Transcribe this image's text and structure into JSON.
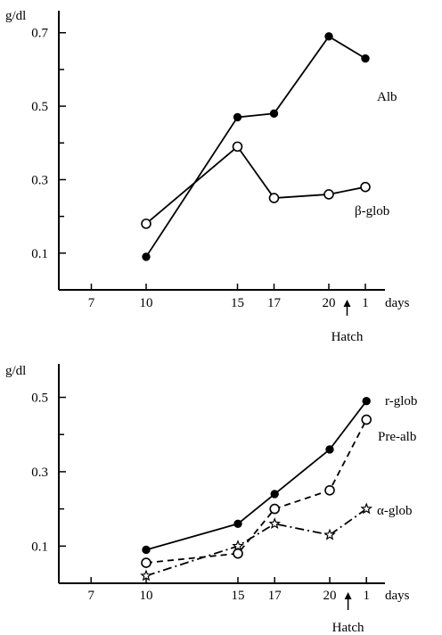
{
  "chart_data": [
    {
      "type": "line",
      "title": "",
      "ylabel": "g/dl",
      "xlabel": "days",
      "x_ticks": [
        "7",
        "10",
        "15",
        "17",
        "20",
        "1"
      ],
      "x_positions": [
        7,
        10,
        15,
        17,
        20,
        22
      ],
      "y_ticks": [
        "0.1",
        "0.3",
        "0.5",
        "0.7"
      ],
      "ylim": [
        0.0,
        0.76
      ],
      "xlim": [
        4,
        23.5
      ],
      "annotation": {
        "text": "Hatch",
        "x": 21
      },
      "series": [
        {
          "name": "Alb",
          "marker": "filled-circle",
          "style": "solid",
          "x": [
            10,
            15,
            17,
            20,
            22
          ],
          "values": [
            0.09,
            0.47,
            0.48,
            0.69,
            0.63
          ]
        },
        {
          "name": "β-glob",
          "marker": "open-circle",
          "style": "solid",
          "x": [
            10,
            15,
            17,
            20,
            22
          ],
          "values": [
            0.18,
            0.39,
            0.25,
            0.26,
            0.28
          ]
        }
      ]
    },
    {
      "type": "line",
      "title": "",
      "ylabel": "g/dl",
      "xlabel": "days",
      "x_ticks": [
        "7",
        "10",
        "15",
        "17",
        "20",
        "1"
      ],
      "x_positions": [
        7,
        10,
        15,
        17,
        20,
        22
      ],
      "y_ticks": [
        "0.1",
        "0.3",
        "0.5"
      ],
      "ylim": [
        0.0,
        0.59
      ],
      "xlim": [
        4,
        23.5
      ],
      "annotation": {
        "text": "Hatch",
        "x": 21
      },
      "series": [
        {
          "name": "r-glob",
          "marker": "filled-circle",
          "style": "solid",
          "x": [
            10,
            15,
            17,
            20,
            22
          ],
          "values": [
            0.09,
            0.16,
            0.24,
            0.36,
            0.49
          ]
        },
        {
          "name": "Pre-alb",
          "marker": "open-circle",
          "style": "dashed",
          "x": [
            10,
            15,
            17,
            20,
            22
          ],
          "values": [
            0.055,
            0.08,
            0.2,
            0.25,
            0.44
          ]
        },
        {
          "name": "α-glob",
          "marker": "star",
          "style": "dash-dot",
          "x": [
            10,
            15,
            17,
            20,
            22
          ],
          "values": [
            0.02,
            0.1,
            0.16,
            0.13,
            0.2
          ]
        }
      ]
    }
  ]
}
